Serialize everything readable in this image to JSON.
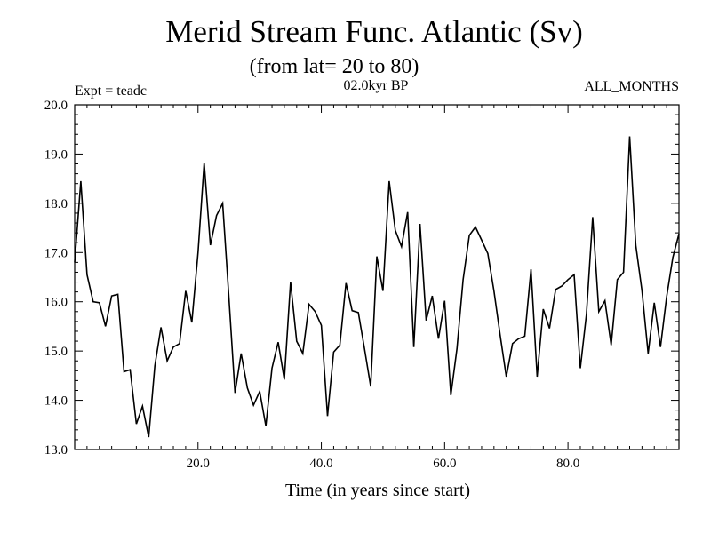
{
  "chart_data": {
    "type": "line",
    "title": "Merid Stream Func. Atlantic (Sv)",
    "subtitle": "(from lat= 20 to 80)",
    "experiment": "Expt = teadc",
    "period": "02.0kyr BP",
    "months": "ALL_MONTHS",
    "xlabel": "Time (in years since start)",
    "ylabel": "",
    "xlim": [
      0,
      98
    ],
    "ylim": [
      13.0,
      20.0
    ],
    "xticks": [
      20,
      40,
      60,
      80
    ],
    "xtick_labels": [
      "20.0",
      "40.0",
      "60.0",
      "80.0"
    ],
    "yticks": [
      13,
      14,
      15,
      16,
      17,
      18,
      19,
      20
    ],
    "ytick_labels": [
      "13.0",
      "14.0",
      "15.0",
      "16.0",
      "17.0",
      "18.0",
      "19.0",
      "20.0"
    ],
    "grid": false,
    "series": [
      {
        "name": "Merid Stream Func. Atlantic",
        "x": [
          0,
          1,
          2,
          3,
          4,
          5,
          6,
          7,
          8,
          9,
          10,
          11,
          12,
          13,
          14,
          15,
          16,
          17,
          18,
          19,
          20,
          21,
          22,
          23,
          24,
          25,
          26,
          27,
          28,
          29,
          30,
          31,
          32,
          33,
          34,
          35,
          36,
          37,
          38,
          39,
          40,
          41,
          42,
          43,
          44,
          45,
          46,
          47,
          48,
          49,
          50,
          51,
          52,
          53,
          54,
          55,
          56,
          57,
          58,
          59,
          60,
          61,
          62,
          63,
          64,
          65,
          66,
          67,
          68,
          69,
          70,
          71,
          72,
          73,
          74,
          75,
          76,
          77,
          78,
          79,
          80,
          81,
          82,
          83,
          84,
          85,
          86,
          87,
          88,
          89,
          90,
          91,
          92,
          93,
          94,
          95,
          96,
          97,
          98
        ],
        "values": [
          16.8,
          18.45,
          16.55,
          16.0,
          15.98,
          15.5,
          16.12,
          16.15,
          14.58,
          14.62,
          13.52,
          13.88,
          13.25,
          14.7,
          15.48,
          14.8,
          15.08,
          15.15,
          16.22,
          15.58,
          17.0,
          18.82,
          17.15,
          17.75,
          18.0,
          16.1,
          14.15,
          14.95,
          14.25,
          13.9,
          14.18,
          13.48,
          14.65,
          15.18,
          14.42,
          16.4,
          15.2,
          14.95,
          15.95,
          15.8,
          15.52,
          13.68,
          14.98,
          15.12,
          16.38,
          15.82,
          15.78,
          15.05,
          14.28,
          16.92,
          16.22,
          18.45,
          17.45,
          17.12,
          17.82,
          15.08,
          17.58,
          15.62,
          16.12,
          15.25,
          16.02,
          14.1,
          15.05,
          16.45,
          17.35,
          17.52,
          17.25,
          16.98,
          16.22,
          15.32,
          14.48,
          15.15,
          15.25,
          15.3,
          16.66,
          14.48,
          15.85,
          15.46,
          16.25,
          16.32,
          16.45,
          16.55,
          14.65,
          15.75,
          17.72,
          15.8,
          16.02,
          15.12,
          16.45,
          16.6,
          19.36,
          17.15,
          16.22,
          14.95,
          15.98,
          15.08,
          16.1,
          16.9,
          17.38
        ]
      }
    ]
  }
}
